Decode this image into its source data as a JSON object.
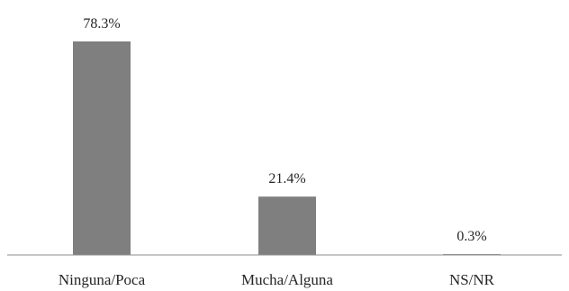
{
  "chart_data": {
    "type": "bar",
    "categories": [
      "Ninguna/Poca",
      "Mucha/Alguna",
      "NS/NR"
    ],
    "values": [
      78.3,
      21.4,
      0.3
    ],
    "data_labels": [
      "78.3%",
      "21.4%",
      "0.3%"
    ],
    "ylim": [
      0,
      80
    ],
    "grid": false,
    "legend": "none",
    "colors": {
      "bar": "#7f7f7f",
      "axis": "#8c8c8c",
      "text": "#262626"
    }
  }
}
